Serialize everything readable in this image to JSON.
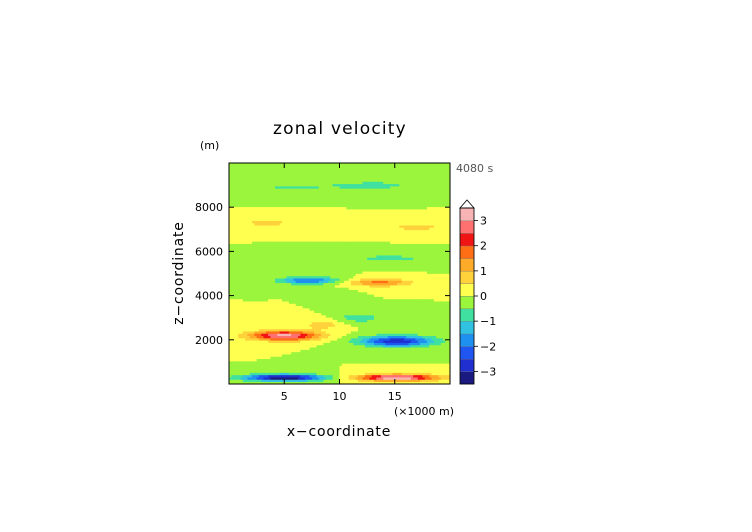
{
  "chart_data": {
    "type": "heatmap",
    "title": "zonal velocity",
    "xlabel": "x−coordinate",
    "ylabel": "z−coordinate",
    "x_unit_label": "(×1000 m)",
    "y_unit_label": "(m)",
    "time_label": "4080 s",
    "xlim": [
      0,
      20
    ],
    "ylim": [
      0,
      10000
    ],
    "x_ticks": [
      5,
      10,
      15
    ],
    "y_ticks": [
      2000,
      4000,
      6000,
      8000
    ],
    "colorbar": {
      "min": -3.5,
      "max": 3.5,
      "step": 0.5,
      "tick_values": [
        -3,
        -2,
        -1,
        0,
        1,
        2,
        3
      ],
      "tick_labels": [
        "−3",
        "−2",
        "−1",
        "0",
        "1",
        "2",
        "3"
      ],
      "colors": [
        "#1a1a80",
        "#1f2fd0",
        "#1f55f0",
        "#1e90f0",
        "#30c2e0",
        "#40e0a0",
        "#9bf53c",
        "#ffff50",
        "#ffd23c",
        "#ffaa28",
        "#ff6e14",
        "#f01414",
        "#ff7070",
        "#f8b4b4"
      ],
      "extend_max": true
    },
    "features": [
      {
        "x": 13.2,
        "z": 9000,
        "sx": 5.0,
        "sz": 550,
        "v": -0.6,
        "rot": 0
      },
      {
        "x": 5.0,
        "z": 8900,
        "sx": 4.5,
        "sz": 550,
        "v": -0.5,
        "rot": 0
      },
      {
        "x": 3.5,
        "z": 7300,
        "sx": 3.5,
        "sz": 450,
        "v": 0.6,
        "rot": 0
      },
      {
        "x": 17.0,
        "z": 7100,
        "sx": 4.0,
        "sz": 450,
        "v": 0.6,
        "rot": 0
      },
      {
        "x": 14.5,
        "z": 5700,
        "sx": 5.0,
        "sz": 450,
        "v": -0.6,
        "rot": 0
      },
      {
        "x": 7.2,
        "z": 4700,
        "sx": 2.6,
        "sz": 320,
        "v": -2.1,
        "rot": 18
      },
      {
        "x": 13.6,
        "z": 4600,
        "sx": 2.8,
        "sz": 330,
        "v": 1.7,
        "rot": -18
      },
      {
        "x": 5.0,
        "z": 2200,
        "sx": 3.1,
        "sz": 430,
        "v": 3.2,
        "rot": -10
      },
      {
        "x": 8.5,
        "z": 2700,
        "sx": 1.7,
        "sz": 450,
        "v": 0.8,
        "rot": 0
      },
      {
        "x": 15.2,
        "z": 1950,
        "sx": 3.3,
        "sz": 480,
        "v": -2.9,
        "rot": 10
      },
      {
        "x": 12.0,
        "z": 3000,
        "sx": 1.8,
        "sz": 450,
        "v": -0.8,
        "rot": 0
      },
      {
        "x": 5.0,
        "z": 300,
        "sx": 3.6,
        "sz": 300,
        "v": -3.6,
        "rot": 0
      },
      {
        "x": 15.2,
        "z": 300,
        "sx": 3.6,
        "sz": 300,
        "v": 3.6,
        "rot": 0
      },
      {
        "x": 10.2,
        "z": 3500,
        "sx": 0.9,
        "sz": 1300,
        "v": -0.3,
        "rot": 0
      }
    ]
  }
}
